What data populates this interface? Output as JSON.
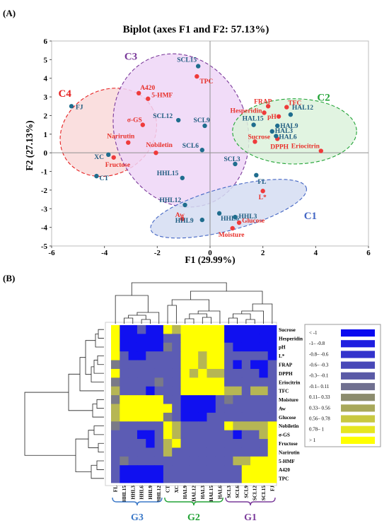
{
  "colors": {
    "variable_point": "#ef3b3b",
    "variable_label": "#e8312b",
    "sample_point": "#1f6d8e",
    "sample_label": "#1f5c80",
    "C1": "#4466c4",
    "C2": "#22a336",
    "C3": "#7a3a9a",
    "C4": "#e62020",
    "C1_fill": "#d5ddf2",
    "C2_fill": "#dcf2dc",
    "C3_fill": "#efd6f7",
    "C4_fill": "#f9d9d9",
    "G1": "#7a3a9a",
    "G2": "#22a336",
    "G3": "#3a78c8"
  },
  "chart_data": [
    {
      "panel": "(A)",
      "type": "scatter",
      "title": "Biplot (axes F1 and F2: 57.13%)",
      "xlabel": "F1 (29.99%)",
      "ylabel": "F2 (27.13%)",
      "xlim": [
        -6,
        6
      ],
      "ylim": [
        -5,
        6
      ],
      "xticks": [
        "-6",
        "-4",
        "-2",
        "0",
        "2",
        "4",
        "6"
      ],
      "yticks": [
        "-5",
        "-4",
        "-3",
        "-2",
        "-1",
        "0",
        "1",
        "2",
        "3",
        "4",
        "5",
        "6"
      ],
      "grid": false,
      "series": [
        {
          "name": "variables",
          "points": [
            {
              "label": "TPC",
              "x": -0.5,
              "y": 4.1
            },
            {
              "label": "A420",
              "x": -2.7,
              "y": 3.2
            },
            {
              "label": "5-HMF",
              "x": -2.35,
              "y": 2.9
            },
            {
              "label": "σ-GS",
              "x": -2.55,
              "y": 1.5
            },
            {
              "label": "Nobiletin",
              "x": -2.05,
              "y": 0.0
            },
            {
              "label": "Narirutin",
              "x": -3.1,
              "y": 0.55
            },
            {
              "label": "Fructose",
              "x": -3.65,
              "y": -0.25
            },
            {
              "label": "FRAP",
              "x": 2.2,
              "y": 2.5
            },
            {
              "label": "TFC",
              "x": 2.9,
              "y": 2.45
            },
            {
              "label": "Hesperidin",
              "x": 2.05,
              "y": 2.15
            },
            {
              "label": "pH",
              "x": 2.6,
              "y": 1.95
            },
            {
              "label": "Sucrose",
              "x": 1.7,
              "y": 0.6
            },
            {
              "label": "DPPH",
              "x": 2.55,
              "y": 0.75
            },
            {
              "label": "Eriocitrin",
              "x": 4.2,
              "y": 0.1
            },
            {
              "label": "L*",
              "x": 2.0,
              "y": -2.05
            },
            {
              "label": "Aw",
              "x": -1.05,
              "y": -3.55
            },
            {
              "label": "Moisture",
              "x": 0.85,
              "y": -4.05
            },
            {
              "label": "Glucose",
              "x": 1.1,
              "y": -3.75
            }
          ]
        },
        {
          "name": "samples",
          "points": [
            {
              "label": "FJ",
              "x": -5.25,
              "y": 2.5
            },
            {
              "label": "XC",
              "x": -3.85,
              "y": -0.1
            },
            {
              "label": "CT",
              "x": -4.3,
              "y": -1.25
            },
            {
              "label": "SCL15",
              "x": -0.45,
              "y": 4.65
            },
            {
              "label": "SCL12",
              "x": -1.2,
              "y": 1.75
            },
            {
              "label": "SCL9",
              "x": -0.2,
              "y": 1.45
            },
            {
              "label": "SCL6",
              "x": -0.3,
              "y": 0.15
            },
            {
              "label": "SCL3",
              "x": 0.95,
              "y": -0.6
            },
            {
              "label": "HHL15",
              "x": -1.05,
              "y": -1.35
            },
            {
              "label": "HHL12",
              "x": -0.95,
              "y": -2.8
            },
            {
              "label": "HHL9",
              "x": -0.3,
              "y": -3.6
            },
            {
              "label": "HHL6",
              "x": 0.35,
              "y": -3.25
            },
            {
              "label": "HHL3",
              "x": 0.95,
              "y": -3.45
            },
            {
              "label": "FL",
              "x": 1.75,
              "y": -1.2
            },
            {
              "label": "HAL15",
              "x": 1.65,
              "y": 1.5
            },
            {
              "label": "HAL12",
              "x": 3.05,
              "y": 2.05
            },
            {
              "label": "HAL9",
              "x": 2.55,
              "y": 1.45
            },
            {
              "label": "HAL3",
              "x": 2.35,
              "y": 1.15
            },
            {
              "label": "HAL6",
              "x": 2.5,
              "y": 0.9
            }
          ]
        }
      ],
      "clusters": [
        {
          "name": "C1"
        },
        {
          "name": "C2"
        },
        {
          "name": "C3"
        },
        {
          "name": "C4"
        }
      ]
    },
    {
      "panel": "(B)",
      "type": "heatmap",
      "columns": [
        "FL",
        "HHL15",
        "HHL3",
        "HHL6",
        "HHL9",
        "HHL12",
        "CT",
        "XC",
        "HAL9",
        "HAL12",
        "HAL3",
        "HAL15",
        "HAL6",
        "SCL3",
        "SCL6",
        "SCL9",
        "SCL12",
        "SCL15",
        "FJ"
      ],
      "rows": [
        "Sucrose",
        "Hesperidin",
        "pH",
        "L*",
        "FRAP",
        "DPPH",
        "Eriocitrin",
        "TFC",
        "Moisture",
        "Aw",
        "Glucose",
        "Nobiletin",
        "σ-GS",
        "Fructose",
        "Narirutin",
        "5-HMF",
        "A420",
        "TPC"
      ],
      "legend": [
        {
          "label": "< -1",
          "color": "#0a0af0"
        },
        {
          "label": "-1– -0.8",
          "color": "#1e1ee0"
        },
        {
          "label": "-0.8– -0.6",
          "color": "#3333cc"
        },
        {
          "label": "-0.6– -0.3",
          "color": "#4848b8"
        },
        {
          "label": "-0.3– -0.1",
          "color": "#5a5aa6"
        },
        {
          "label": "-0.1– 0.11",
          "color": "#707090"
        },
        {
          "label": "0.11– 0.33",
          "color": "#8c8c6e"
        },
        {
          "label": "0.33– 0.56",
          "color": "#a8a85a"
        },
        {
          "label": "0.56– 0.78",
          "color": "#c8c840"
        },
        {
          "label": "0.78– 1",
          "color": "#e6e620"
        },
        {
          "label": "> 1",
          "color": "#ffff00"
        }
      ],
      "values": [
        [
          2,
          -2,
          -2,
          -1,
          -2,
          -2,
          2,
          1,
          2,
          2,
          2,
          2,
          2,
          -2,
          -2,
          -2,
          -2,
          -2,
          -2
        ],
        [
          2,
          -2,
          -2,
          -2,
          -2,
          -2,
          -1,
          -1,
          2,
          2,
          2,
          2,
          2,
          -2,
          -2,
          -2,
          -2,
          -2,
          -2
        ],
        [
          2,
          -2,
          -2,
          -2,
          -2,
          -2,
          0,
          -1,
          2,
          2,
          2,
          2,
          2,
          -1,
          -2,
          -2,
          -2,
          -2,
          -2
        ],
        [
          2,
          -1,
          -2,
          -2,
          -1,
          -1,
          -1,
          -1,
          2,
          2,
          1,
          2,
          2,
          -1,
          -1,
          -1,
          -1,
          -1,
          -2
        ],
        [
          0,
          -1,
          -1,
          -1,
          -1,
          -1,
          -1,
          -1,
          2,
          2,
          1,
          2,
          2,
          -1,
          -2,
          -1,
          -2,
          -2,
          -1
        ],
        [
          2,
          -1,
          -1,
          -1,
          -1,
          -1,
          -1,
          -1,
          2,
          1,
          2,
          1,
          1,
          -1,
          -1,
          -1,
          -1,
          -2,
          -1
        ],
        [
          0,
          -1,
          -1,
          -1,
          -1,
          0,
          -1,
          -1,
          2,
          2,
          2,
          2,
          2,
          -1,
          -1,
          -1,
          -1,
          -1,
          -1
        ],
        [
          1,
          -1,
          -1,
          -1,
          -2,
          -1,
          -1,
          -1,
          2,
          2,
          2,
          2,
          2,
          1,
          1,
          -1,
          1,
          1,
          -1
        ],
        [
          0,
          2,
          2,
          2,
          2,
          2,
          -1,
          -1,
          -2,
          -2,
          -2,
          -2,
          -1,
          0,
          -1,
          -1,
          -1,
          -1,
          -1
        ],
        [
          1,
          2,
          2,
          2,
          2,
          2,
          2,
          -1,
          -2,
          -2,
          -2,
          -2,
          -1,
          -1,
          -1,
          -1,
          -1,
          -1,
          -1
        ],
        [
          1,
          2,
          2,
          2,
          2,
          2,
          0,
          -1,
          -2,
          -2,
          -2,
          -1,
          -1,
          -1,
          -1,
          -1,
          -1,
          -1,
          -1
        ],
        [
          0,
          -1,
          -1,
          -1,
          -1,
          -1,
          2,
          1,
          -1,
          -1,
          -1,
          -1,
          -1,
          2,
          1,
          1,
          1,
          1,
          2
        ],
        [
          -1,
          -1,
          -1,
          -2,
          -2,
          -1,
          2,
          1,
          -1,
          -1,
          -1,
          -1,
          -1,
          -1,
          -2,
          -1,
          -1,
          1,
          2
        ],
        [
          -1,
          -1,
          -1,
          -1,
          -2,
          -1,
          1,
          2,
          -1,
          -1,
          -1,
          -1,
          -1,
          -1,
          -1,
          -1,
          -1,
          -1,
          2
        ],
        [
          -1,
          -1,
          -1,
          -1,
          -1,
          -1,
          1,
          -1,
          -1,
          -1,
          -1,
          -1,
          -1,
          -1,
          -1,
          -1,
          -1,
          -1,
          2
        ],
        [
          -1,
          0,
          -1,
          -1,
          -1,
          -1,
          -1,
          -1,
          -1,
          -1,
          -1,
          -1,
          -1,
          -1,
          1,
          1,
          2,
          2,
          2
        ],
        [
          -1,
          -2,
          -2,
          -2,
          -2,
          -2,
          -1,
          -1,
          -1,
          -1,
          -1,
          -1,
          -1,
          -1,
          -1,
          2,
          2,
          2,
          2
        ],
        [
          -1,
          -2,
          -2,
          -2,
          -2,
          -2,
          -1,
          -1,
          -1,
          -1,
          -1,
          -1,
          -1,
          -1,
          -1,
          2,
          2,
          2,
          2
        ]
      ],
      "groups": [
        {
          "name": "G3"
        },
        {
          "name": "G2"
        },
        {
          "name": "G1"
        }
      ]
    }
  ]
}
